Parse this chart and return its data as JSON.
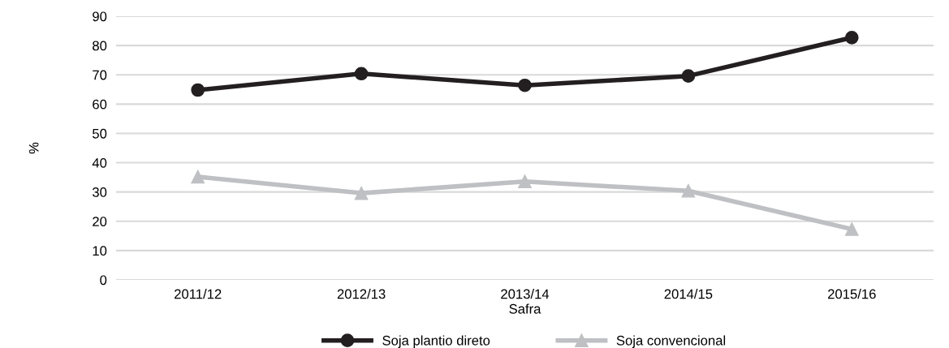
{
  "chart_data": {
    "type": "line",
    "xlabel": "Safra",
    "ylabel": "%",
    "categories": [
      "2011/12",
      "2012/13",
      "2013/14",
      "2014/15",
      "2015/16"
    ],
    "series": [
      {
        "name": "Soja plantio direto",
        "color": "#231f20",
        "marker": "circle",
        "values": [
          64.8,
          70.4,
          66.4,
          69.6,
          82.7
        ]
      },
      {
        "name": "Soja convencional",
        "color": "#bfc0c3",
        "marker": "triangle",
        "values": [
          35.2,
          29.6,
          33.6,
          30.4,
          17.3
        ]
      }
    ],
    "ylim": [
      0,
      90
    ],
    "yticks": [
      0,
      10,
      20,
      30,
      40,
      50,
      60,
      70,
      80,
      90
    ],
    "grid": "y",
    "legend": "bottom"
  }
}
